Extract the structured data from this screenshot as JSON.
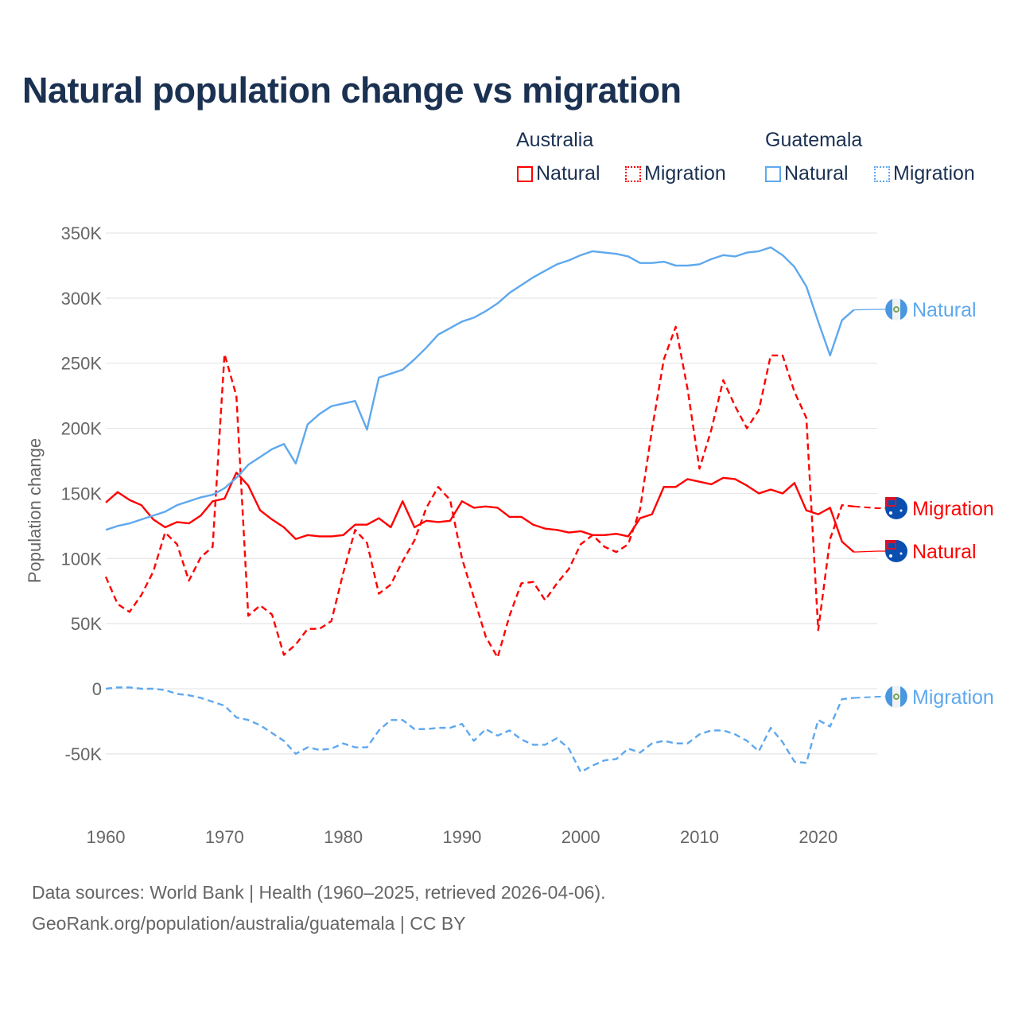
{
  "chart_data": {
    "type": "line",
    "title": "Natural population change vs migration",
    "xlabel": "",
    "ylabel": "Population change",
    "ylim": [
      -100000,
      350000
    ],
    "xlim": [
      1960,
      2025
    ],
    "grid": true,
    "y_ticks": [
      {
        "v": 350000,
        "label": "350K"
      },
      {
        "v": 300000,
        "label": "300K"
      },
      {
        "v": 250000,
        "label": "250K"
      },
      {
        "v": 200000,
        "label": "200K"
      },
      {
        "v": 150000,
        "label": "150K"
      },
      {
        "v": 100000,
        "label": "100K"
      },
      {
        "v": 50000,
        "label": "50K"
      },
      {
        "v": 0,
        "label": "0"
      },
      {
        "v": -50000,
        "label": "-50K"
      }
    ],
    "x_ticks": [
      {
        "v": 1960,
        "label": "1960"
      },
      {
        "v": 1970,
        "label": "1970"
      },
      {
        "v": 1980,
        "label": "1980"
      },
      {
        "v": 1990,
        "label": "1990"
      },
      {
        "v": 2000,
        "label": "2000"
      },
      {
        "v": 2010,
        "label": "2010"
      },
      {
        "v": 2020,
        "label": "2020"
      }
    ],
    "x_start": 1960,
    "legend": {
      "placement": "top-right",
      "groups": [
        {
          "name": "Australia",
          "items": [
            {
              "label": "Natural",
              "color": "#ff0000",
              "style": "solid"
            },
            {
              "label": "Migration",
              "color": "#ff0000",
              "style": "dotted"
            }
          ]
        },
        {
          "name": "Guatemala",
          "items": [
            {
              "label": "Natural",
              "color": "#5ea8ee",
              "style": "solid"
            },
            {
              "label": "Migration",
              "color": "#5ea8ee",
              "style": "dotted"
            }
          ]
        }
      ]
    },
    "series": [
      {
        "name": "Australia Natural",
        "end_label": "Natural",
        "country": "Australia",
        "color": "#ff0000",
        "dash": false,
        "values": [
          143000,
          151000,
          145000,
          141000,
          130000,
          124000,
          128000,
          127000,
          133000,
          144000,
          146000,
          166000,
          156000,
          137000,
          130000,
          124000,
          115000,
          118000,
          117000,
          117000,
          118000,
          126000,
          126000,
          131000,
          124000,
          144000,
          124000,
          129000,
          128000,
          129000,
          144000,
          139000,
          140000,
          139000,
          132000,
          132000,
          126000,
          123000,
          122000,
          120000,
          121000,
          118000,
          118000,
          119000,
          117000,
          131000,
          134000,
          155000,
          155000,
          161000,
          159000,
          157000,
          162000,
          161000,
          156000,
          150000,
          153000,
          150000,
          158000,
          137000,
          134000,
          139000,
          113000,
          105000
        ]
      },
      {
        "name": "Australia Migration",
        "end_label": "Migration",
        "country": "Australia",
        "color": "#ff0000",
        "dash": true,
        "values": [
          86000,
          65000,
          59000,
          72000,
          90000,
          120000,
          111000,
          83000,
          101000,
          109000,
          257000,
          225000,
          56000,
          64000,
          57000,
          26000,
          34000,
          46000,
          46000,
          52000,
          89000,
          122000,
          112000,
          73000,
          80000,
          98000,
          114000,
          139000,
          155000,
          145000,
          100000,
          70000,
          40000,
          24000,
          56000,
          81000,
          82000,
          68000,
          81000,
          92000,
          111000,
          118000,
          109000,
          105000,
          111000,
          138000,
          199000,
          253000,
          278000,
          230000,
          169000,
          199000,
          237000,
          217000,
          200000,
          214000,
          256000,
          256000,
          228000,
          208000,
          45000,
          115000,
          141000,
          140000
        ]
      },
      {
        "name": "Guatemala Natural",
        "end_label": "Natural",
        "country": "Guatemala",
        "color": "#5ea8ee",
        "dash": false,
        "values": [
          122000,
          125000,
          127000,
          130000,
          133000,
          136000,
          141000,
          144000,
          147000,
          149000,
          154000,
          162000,
          172000,
          178000,
          184000,
          188000,
          173000,
          203000,
          211000,
          217000,
          219000,
          221000,
          199000,
          239000,
          242000,
          245000,
          253000,
          262000,
          272000,
          277000,
          282000,
          285000,
          290000,
          296000,
          304000,
          310000,
          316000,
          321000,
          326000,
          329000,
          333000,
          336000,
          335000,
          334000,
          332000,
          327000,
          327000,
          328000,
          325000,
          325000,
          326000,
          330000,
          333000,
          332000,
          335000,
          336000,
          339000,
          333000,
          324000,
          309000,
          282000,
          256000,
          283000,
          291000
        ]
      },
      {
        "name": "Guatemala Migration",
        "end_label": "Migration",
        "country": "Guatemala",
        "color": "#5ea8ee",
        "dash": true,
        "values": [
          0,
          1000,
          1000,
          0,
          0,
          -1000,
          -4000,
          -5000,
          -7000,
          -10000,
          -13000,
          -22000,
          -24000,
          -28000,
          -34000,
          -40000,
          -50000,
          -45000,
          -47000,
          -46000,
          -42000,
          -45000,
          -45000,
          -32000,
          -24000,
          -24000,
          -31000,
          -31000,
          -30000,
          -30000,
          -27000,
          -40000,
          -31000,
          -36000,
          -32000,
          -39000,
          -43000,
          -43000,
          -38000,
          -46000,
          -64000,
          -59000,
          -55000,
          -54000,
          -46000,
          -49000,
          -42000,
          -40000,
          -42000,
          -42000,
          -35000,
          -32000,
          -32000,
          -35000,
          -40000,
          -48000,
          -30000,
          -41000,
          -56000,
          -57000,
          -24000,
          -29000,
          -8000,
          -7000
        ]
      }
    ]
  },
  "footer": {
    "line1": "Data sources: World Bank | Health (1960–2025, retrieved 2026-04-06).",
    "line2": "GeoRank.org/population/australia/guatemala | CC BY"
  }
}
